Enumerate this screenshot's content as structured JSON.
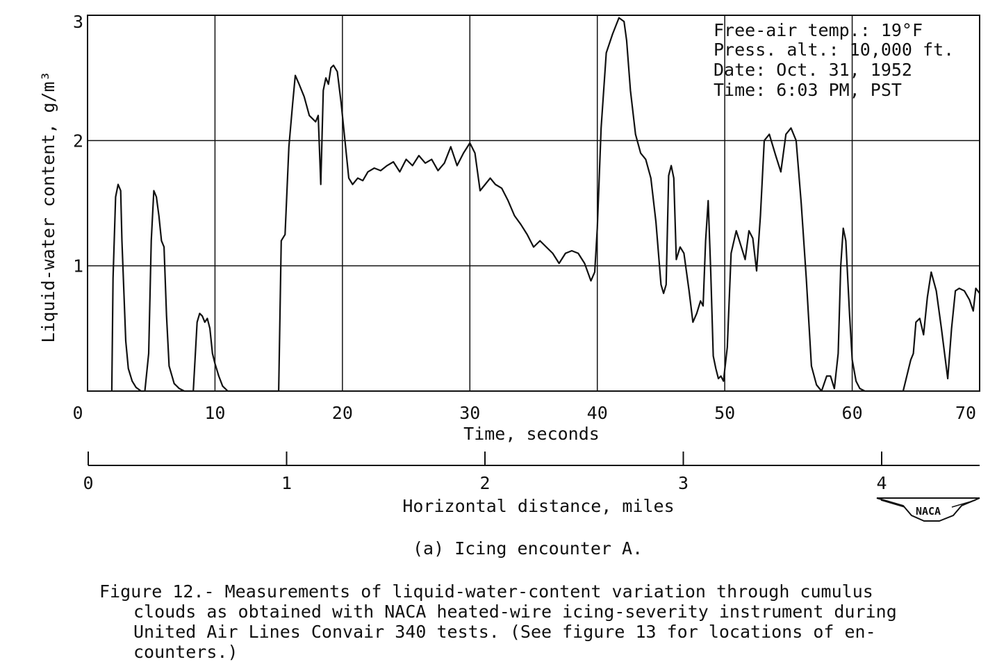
{
  "chart_data": {
    "type": "line",
    "xlabel": "Time, seconds",
    "ylabel": "Liquid-water content, g/m³",
    "xlim": [
      0,
      70
    ],
    "ylim": [
      0,
      3
    ],
    "x_ticks": [
      "0",
      "10",
      "20",
      "30",
      "40",
      "50",
      "60",
      "70"
    ],
    "y_ticks": [
      "1",
      "2",
      "3"
    ],
    "grid": true,
    "secondary_axis": {
      "label": "Horizontal distance, miles",
      "ticks": [
        "0",
        "1",
        "2",
        "3",
        "4"
      ]
    },
    "annotation": {
      "line1": "Free-air temp.: 19°F",
      "line2": "Press. alt.: 10,000 ft.",
      "line3": "Date: Oct. 31, 1952",
      "line4": "Time: 6:03 PM, PST"
    },
    "series": [
      {
        "x": [
          1.9,
          2.0,
          2.2,
          2.4,
          2.6,
          2.7,
          3.0,
          3.2,
          3.5,
          3.8,
          4.2,
          4.5,
          4.8,
          5.0,
          5.2,
          5.4,
          5.6,
          5.8,
          6.0,
          6.2,
          6.4,
          6.8,
          7.2,
          7.6,
          8.0,
          8.3,
          8.6,
          8.8,
          9.0,
          9.2,
          9.4,
          9.6,
          9.8,
          10.0,
          10.3,
          10.6,
          11.0,
          11.5,
          12.5,
          14.0,
          15.0,
          15.2,
          15.5,
          15.8,
          16.1,
          16.3,
          16.6,
          17.0,
          17.4,
          17.9,
          18.1,
          18.3,
          18.5,
          18.7,
          18.9,
          19.1,
          19.3,
          19.6,
          19.9,
          20.2,
          20.5,
          20.8,
          21.2,
          21.6,
          22.0,
          22.5,
          23.0,
          23.5,
          24.0,
          24.5,
          25.0,
          25.5,
          26.0,
          26.5,
          27.0,
          27.5,
          28.0,
          28.5,
          29.0,
          29.5,
          30.0,
          30.4,
          30.8,
          31.2,
          31.6,
          32.0,
          32.5,
          33.0,
          33.5,
          34.0,
          34.5,
          35.0,
          35.5,
          36.0,
          36.5,
          37.0,
          37.5,
          38.0,
          38.5,
          39.0,
          39.5,
          39.8,
          40.0,
          40.3,
          40.7,
          41.2,
          41.7,
          42.1,
          42.3,
          42.6,
          43.0,
          43.4,
          43.8,
          44.2,
          44.6,
          45.0,
          45.2,
          45.4,
          45.6,
          45.8,
          46.0,
          46.2,
          46.5,
          46.8,
          47.2,
          47.5,
          47.8,
          48.1,
          48.3,
          48.5,
          48.7,
          48.9,
          49.1,
          49.3,
          49.5,
          49.7,
          49.9,
          50.2,
          50.5,
          50.9,
          51.3,
          51.6,
          51.9,
          52.2,
          52.5,
          52.8,
          53.1,
          53.5,
          54.0,
          54.4,
          54.8,
          55.2,
          55.6,
          56.0,
          56.4,
          56.8,
          57.2,
          57.6,
          58.0,
          58.3,
          58.6,
          58.9,
          59.1,
          59.3,
          59.5,
          59.8,
          60.0,
          60.3,
          60.6,
          61.0,
          61.5,
          62.5,
          64.0,
          64.6,
          64.8,
          65.0,
          65.3,
          65.6,
          65.9,
          66.2,
          66.6,
          67.0,
          67.5,
          67.8,
          68.1,
          68.4,
          68.8,
          69.2,
          69.5,
          69.7,
          70.0
        ],
        "values": [
          0.0,
          0.9,
          1.55,
          1.65,
          1.6,
          1.2,
          0.4,
          0.18,
          0.08,
          0.03,
          0.0,
          0.0,
          0.3,
          1.2,
          1.6,
          1.55,
          1.4,
          1.2,
          1.15,
          0.6,
          0.2,
          0.06,
          0.02,
          0.0,
          0.0,
          0.0,
          0.55,
          0.62,
          0.6,
          0.55,
          0.58,
          0.5,
          0.3,
          0.22,
          0.12,
          0.04,
          0.0,
          0.0,
          0.0,
          0.0,
          0.0,
          1.2,
          1.25,
          1.95,
          2.3,
          2.52,
          2.45,
          2.35,
          2.2,
          2.15,
          2.2,
          1.65,
          2.4,
          2.5,
          2.45,
          2.58,
          2.6,
          2.55,
          2.3,
          2.0,
          1.7,
          1.65,
          1.7,
          1.68,
          1.75,
          1.78,
          1.76,
          1.8,
          1.83,
          1.75,
          1.85,
          1.8,
          1.88,
          1.82,
          1.85,
          1.76,
          1.82,
          1.95,
          1.8,
          1.9,
          1.98,
          1.9,
          1.6,
          1.65,
          1.7,
          1.65,
          1.62,
          1.52,
          1.4,
          1.33,
          1.25,
          1.15,
          1.2,
          1.15,
          1.1,
          1.02,
          1.1,
          1.12,
          1.1,
          1.02,
          0.88,
          0.95,
          1.3,
          2.1,
          2.7,
          2.85,
          2.98,
          2.95,
          2.8,
          2.4,
          2.05,
          1.9,
          1.85,
          1.7,
          1.35,
          0.85,
          0.78,
          0.85,
          1.72,
          1.8,
          1.7,
          1.05,
          1.15,
          1.1,
          0.8,
          0.55,
          0.62,
          0.72,
          0.68,
          1.2,
          1.52,
          0.95,
          0.28,
          0.18,
          0.1,
          0.12,
          0.08,
          0.35,
          1.1,
          1.28,
          1.15,
          1.05,
          1.28,
          1.22,
          0.96,
          1.4,
          2.0,
          2.05,
          1.88,
          1.75,
          2.05,
          2.1,
          2.0,
          1.5,
          0.9,
          0.2,
          0.05,
          0.0,
          0.12,
          0.12,
          0.02,
          0.3,
          1.0,
          1.3,
          1.2,
          0.6,
          0.25,
          0.08,
          0.02,
          0.0,
          0.0,
          0.0,
          0.0,
          0.25,
          0.3,
          0.55,
          0.58,
          0.45,
          0.75,
          0.95,
          0.8,
          0.5,
          0.1,
          0.5,
          0.8,
          0.82,
          0.8,
          0.73,
          0.64,
          0.82,
          0.78
        ]
      }
    ]
  },
  "subcaption": "(a) Icing encounter A.",
  "caption": {
    "line1": "Figure 12.- Measurements of liquid-water-content variation through cumulus",
    "line2": "clouds as obtained with NACA heated-wire icing-severity instrument during",
    "line3": "United Air Lines Convair 340 tests. (See figure 13 for locations of en-",
    "line4": "counters.)"
  },
  "logo_text": "NACA"
}
